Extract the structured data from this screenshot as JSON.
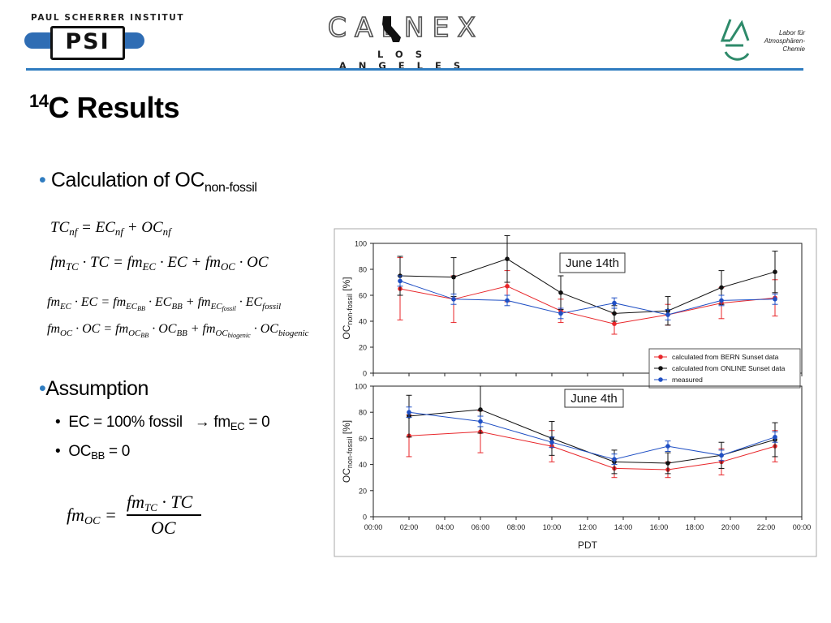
{
  "header": {
    "psi_name": "PAUL SCHERRER INSTITUT",
    "psi_mark": "PSI",
    "calnex_word": "CALNEX",
    "calnex_sub": "LOS ANGELES",
    "lac_text": "Labor für\nAtmosphären-\nChemie"
  },
  "colors": {
    "accent_blue": "#2f7cc0",
    "bern_red": "#e8262a",
    "online_black": "#111111",
    "measured_blue": "#1f4fc4"
  },
  "title": {
    "sup": "14",
    "main": "C Results"
  },
  "bullet1": {
    "dot": "•",
    "text": "Calculation of OC",
    "sub": "non-fossil"
  },
  "bullet2": {
    "dot": "•",
    "text": "Assumption"
  },
  "sub_bullets": [
    {
      "dot": "•",
      "pre": "EC = 100% fossil",
      "arrow": "→",
      "post1": " fm",
      "sub": "EC",
      "post2": " = 0"
    },
    {
      "dot": "•",
      "pre": "OC",
      "sub": "BB",
      "post": " = 0"
    }
  ],
  "chart_data": [
    {
      "type": "line",
      "panel_title": "June 14th",
      "ylabel": "OC",
      "ylabel_sub": "non-fossil",
      "ylabel_unit": " [%]",
      "xlabel": "PDT",
      "ylim": [
        0,
        100
      ],
      "yticks": [
        0,
        20,
        40,
        60,
        80,
        100
      ],
      "xlim_hours": [
        0,
        24
      ],
      "xtick_labels": [
        "00:00",
        "02:00",
        "04:00",
        "06:00",
        "08:00",
        "10:00",
        "12:00",
        "14:00",
        "16:00",
        "18:00",
        "20:00",
        "22:00",
        "00:00"
      ],
      "grid": false,
      "legend_position": "lower-right",
      "series": [
        {
          "name": "calculated from BERN Sunset data",
          "color": "#e8262a",
          "x": [
            1.5,
            4.5,
            7.5,
            10.5,
            13.5,
            16.5,
            19.5,
            22.5
          ],
          "y": [
            65,
            57,
            67,
            48,
            38,
            45,
            54,
            58
          ],
          "err": [
            24,
            18,
            12,
            9,
            8,
            8,
            12,
            14
          ]
        },
        {
          "name": "calculated from ONLINE Sunset data",
          "color": "#111111",
          "x": [
            1.5,
            4.5,
            7.5,
            10.5,
            13.5,
            16.5,
            19.5,
            22.5
          ],
          "y": [
            75,
            74,
            88,
            62,
            46,
            48,
            66,
            78
          ],
          "err": [
            15,
            15,
            18,
            13,
            6,
            11,
            13,
            16
          ]
        },
        {
          "name": "measured",
          "color": "#1f4fc4",
          "x": [
            1.5,
            4.5,
            7.5,
            10.5,
            13.5,
            16.5,
            19.5,
            22.5
          ],
          "y": [
            71,
            57,
            56,
            46,
            54,
            45,
            56,
            57
          ],
          "err": [
            4,
            4,
            4,
            4,
            4,
            4,
            4,
            4
          ]
        }
      ]
    },
    {
      "type": "line",
      "panel_title": "June 4th",
      "ylabel": "OC",
      "ylabel_sub": "non-fossil",
      "ylabel_unit": " [%]",
      "xlabel": "PDT",
      "ylim": [
        0,
        100
      ],
      "yticks": [
        0,
        20,
        40,
        60,
        80,
        100
      ],
      "xlim_hours": [
        0,
        24
      ],
      "xtick_labels": [
        "00:00",
        "02:00",
        "04:00",
        "06:00",
        "08:00",
        "10:00",
        "12:00",
        "14:00",
        "16:00",
        "18:00",
        "20:00",
        "22:00",
        "00:00"
      ],
      "grid": false,
      "series": [
        {
          "name": "calculated from BERN Sunset data",
          "color": "#e8262a",
          "x": [
            2,
            6,
            10,
            13.5,
            16.5,
            19.5,
            22.5
          ],
          "y": [
            62,
            65,
            54,
            37,
            36,
            42,
            54
          ],
          "err": [
            16,
            16,
            12,
            7,
            6,
            10,
            12
          ]
        },
        {
          "name": "calculated from ONLINE Sunset data",
          "color": "#111111",
          "x": [
            2,
            6,
            10,
            13.5,
            16.5,
            19.5,
            22.5
          ],
          "y": [
            77,
            82,
            60,
            42,
            41,
            47,
            59
          ],
          "err": [
            16,
            18,
            13,
            9,
            8,
            10,
            13
          ]
        },
        {
          "name": "measured",
          "color": "#1f4fc4",
          "x": [
            2,
            6,
            10,
            13.5,
            16.5,
            19.5,
            22.5
          ],
          "y": [
            80,
            73,
            57,
            44,
            54,
            47,
            61
          ],
          "err": [
            4,
            4,
            4,
            4,
            4,
            4,
            4
          ]
        }
      ]
    }
  ]
}
